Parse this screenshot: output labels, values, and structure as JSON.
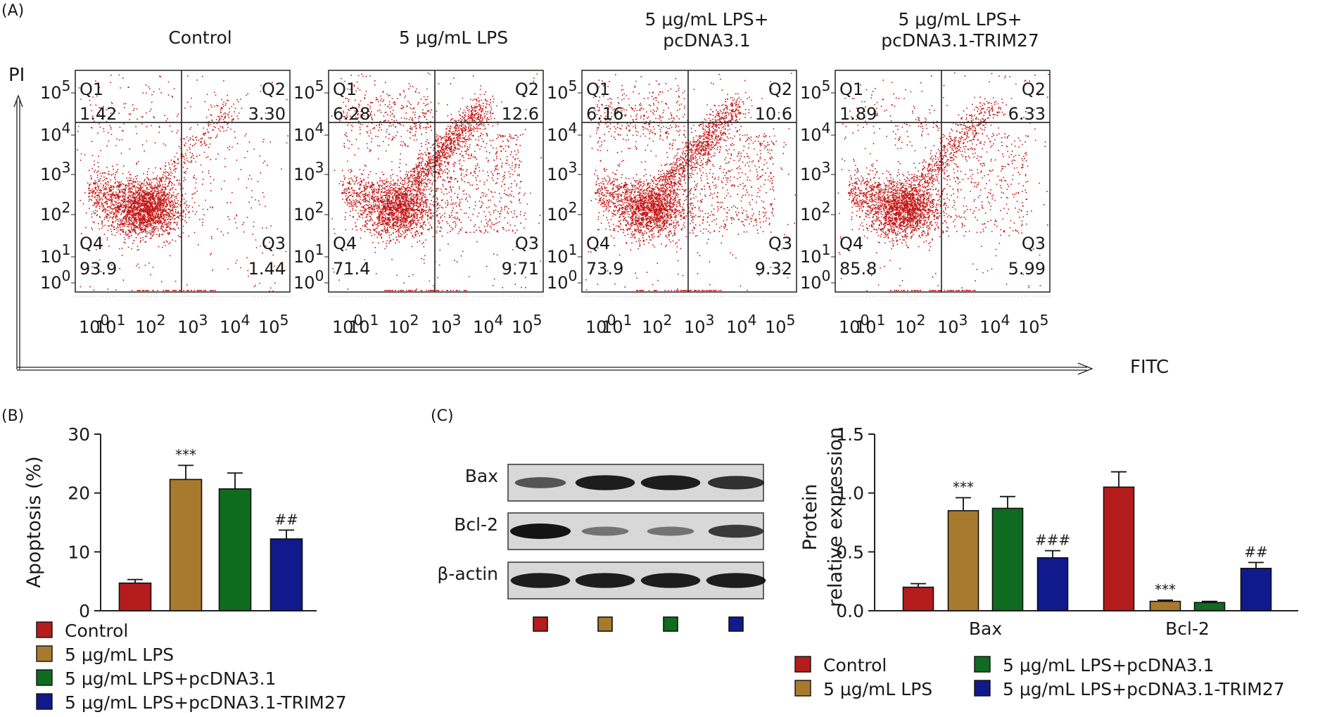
{
  "panel_labels": {
    "a": "(A)",
    "b": "(B)",
    "c": "(C)"
  },
  "colors": {
    "control": "#b51c1c",
    "lps": "#a87a2e",
    "lps_pcdna": "#0f6b1f",
    "lps_trim27": "#101a8c",
    "dots": "#c41818"
  },
  "groups": [
    "Control",
    "5 μg/mL LPS",
    "5 μg/mL LPS+pcDNA3.1",
    "5 μg/mL LPS+pcDNA3.1-TRIM27"
  ],
  "flow": {
    "y_axis_label": "PI",
    "x_axis_label": "FITC",
    "ticks": [
      {
        "base": "10",
        "exp": "0"
      },
      {
        "base": "10",
        "exp": "1"
      },
      {
        "base": "10",
        "exp": "2"
      },
      {
        "base": "10",
        "exp": "3"
      },
      {
        "base": "10",
        "exp": "4"
      },
      {
        "base": "10",
        "exp": "5"
      }
    ],
    "quadrant_names": [
      "Q1",
      "Q2",
      "Q3",
      "Q4"
    ]
  },
  "chart_data": [
    {
      "type": "scatter",
      "panel": "A",
      "plots": [
        {
          "title_lines": [
            "Control"
          ],
          "quadrants": {
            "Q1": "1.42",
            "Q2": "3.30",
            "Q3": "1.44",
            "Q4": "93.9"
          }
        },
        {
          "title_lines": [
            "5 μg/mL LPS"
          ],
          "quadrants": {
            "Q1": "6.28",
            "Q2": "12.6",
            "Q3": "9.71",
            "Q4": "71.4"
          }
        },
        {
          "title_lines": [
            "5 μg/mL LPS+",
            "pcDNA3.1"
          ],
          "quadrants": {
            "Q1": "6.16",
            "Q2": "10.6",
            "Q3": "9.32",
            "Q4": "73.9"
          }
        },
        {
          "title_lines": [
            "5 μg/mL LPS+",
            "pcDNA3.1-TRIM27"
          ],
          "quadrants": {
            "Q1": "1.89",
            "Q2": "6.33",
            "Q3": "5.99",
            "Q4": "85.8"
          }
        }
      ]
    },
    {
      "type": "bar",
      "panel": "B",
      "ylabel": "Apoptosis (%)",
      "ylim": [
        0,
        30
      ],
      "yticks": [
        "0",
        "10",
        "20",
        "30"
      ],
      "categories": [
        "Control",
        "5 μg/mL LPS",
        "5 μg/mL LPS+pcDNA3.1",
        "5 μg/mL LPS+pcDNA3.1-TRIM27"
      ],
      "values": [
        4.7,
        22.3,
        20.7,
        12.2
      ],
      "errors": [
        0.6,
        2.4,
        2.7,
        1.5
      ],
      "annotations": [
        "",
        "***",
        "",
        "##"
      ],
      "legend": [
        "Control",
        "5 μg/mL LPS",
        "5 μg/mL LPS+pcDNA3.1",
        "5 μg/mL LPS+pcDNA3.1-TRIM27"
      ],
      "legend_position": "bottom"
    },
    {
      "type": "bar",
      "panel": "C",
      "ylabel_lines": [
        "Protein",
        "relative expression"
      ],
      "ylim": [
        0,
        1.5
      ],
      "yticks": [
        "0.0",
        "0.5",
        "1.0",
        "1.5"
      ],
      "categories": [
        "Bax",
        "Bcl-2"
      ],
      "series": [
        {
          "name": "Control",
          "values": [
            0.2,
            1.05
          ],
          "errors": [
            0.03,
            0.13
          ],
          "annotations": [
            "",
            ""
          ]
        },
        {
          "name": "5 μg/mL LPS",
          "values": [
            0.85,
            0.08
          ],
          "errors": [
            0.11,
            0.01
          ],
          "annotations": [
            "***",
            "***"
          ]
        },
        {
          "name": "5 μg/mL LPS+pcDNA3.1",
          "values": [
            0.87,
            0.07
          ],
          "errors": [
            0.1,
            0.01
          ],
          "annotations": [
            "",
            ""
          ]
        },
        {
          "name": "5 μg/mL LPS+pcDNA3.1-TRIM27",
          "values": [
            0.45,
            0.36
          ],
          "errors": [
            0.06,
            0.05
          ],
          "annotations": [
            "###",
            "##"
          ]
        }
      ],
      "legend_position": "bottom"
    }
  ],
  "blot": {
    "rows": [
      {
        "label": "Bax",
        "intensity": [
          0.55,
          0.95,
          0.95,
          0.8
        ]
      },
      {
        "label": "Bcl-2",
        "intensity": [
          1.0,
          0.35,
          0.35,
          0.75
        ]
      },
      {
        "label": "β-actin",
        "intensity": [
          0.95,
          0.95,
          0.95,
          0.95
        ]
      }
    ]
  }
}
